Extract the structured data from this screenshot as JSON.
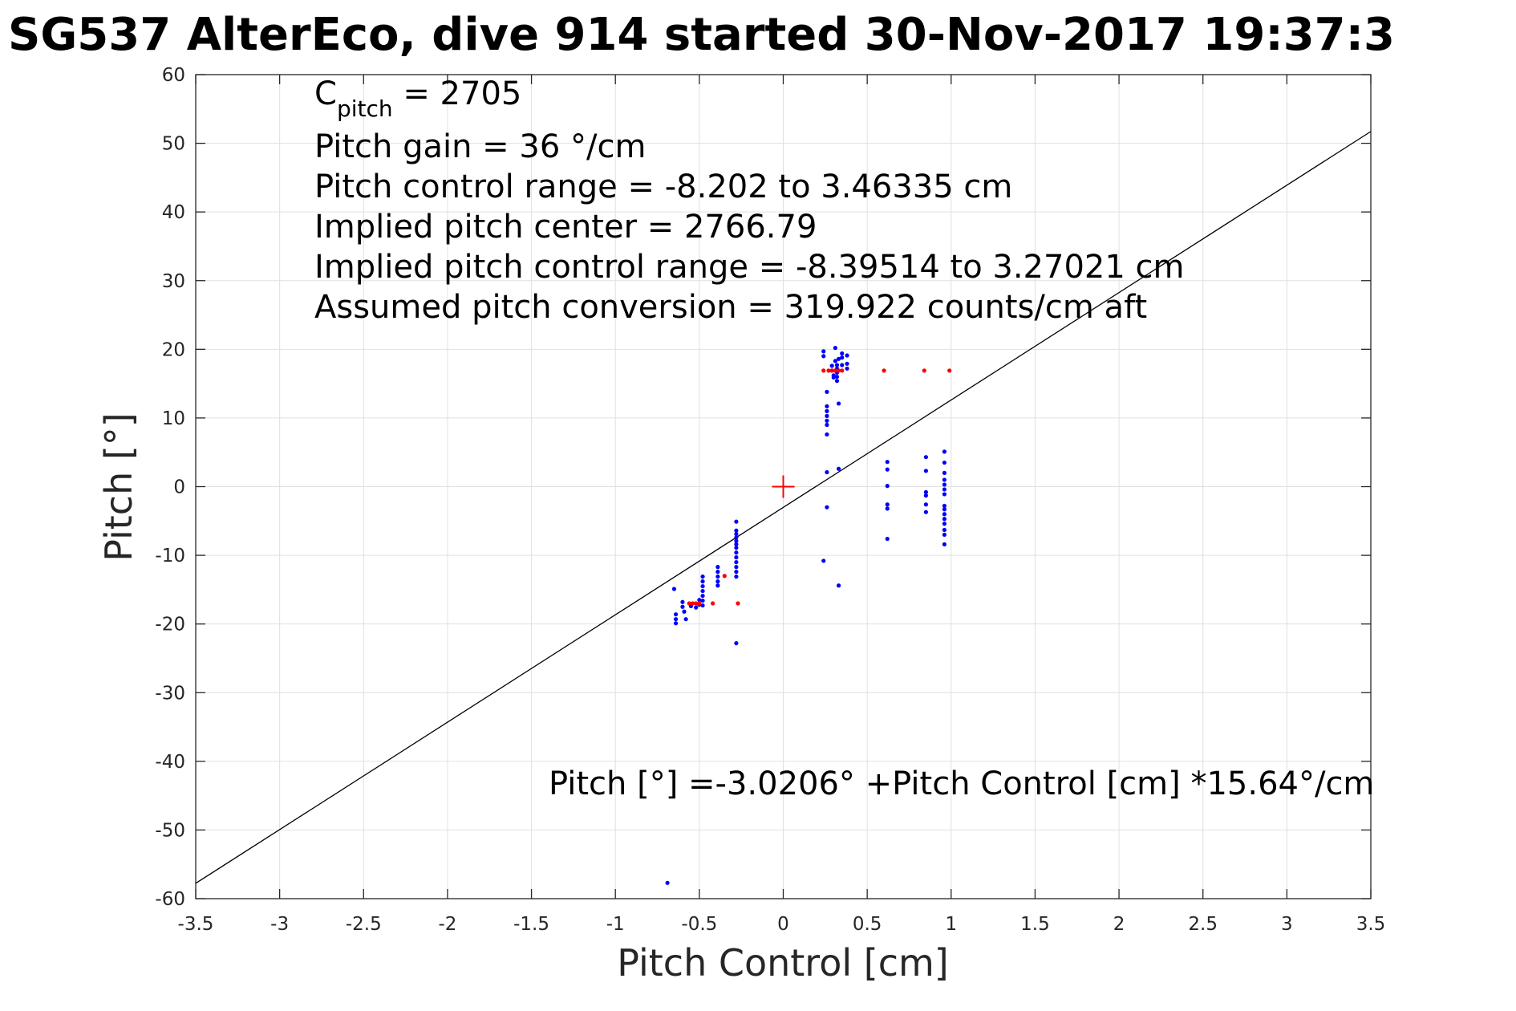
{
  "chart_data": {
    "type": "scatter",
    "title": "SG537 AlterEco, dive 914 started 30-Nov-2017 19:37:3",
    "xlabel": "Pitch Control [cm]",
    "ylabel": "Pitch [°]",
    "xlim": [
      -3.5,
      3.5
    ],
    "ylim": [
      -60,
      60
    ],
    "xticks": [
      -3.5,
      -3,
      -2.5,
      -2,
      -1.5,
      -1,
      -0.5,
      0,
      0.5,
      1,
      1.5,
      2,
      2.5,
      3,
      3.5
    ],
    "xtick_labels": [
      "-3.5",
      "-3",
      "-2.5",
      "-2",
      "-1.5",
      "-1",
      "-0.5",
      "0",
      "0.5",
      "1",
      "1.5",
      "2",
      "2.5",
      "3",
      "3.5"
    ],
    "yticks": [
      -60,
      -50,
      -40,
      -30,
      -20,
      -10,
      0,
      10,
      20,
      30,
      40,
      50,
      60
    ],
    "ytick_labels": [
      "-60",
      "-50",
      "-40",
      "-30",
      "-20",
      "-10",
      "0",
      "10",
      "20",
      "30",
      "40",
      "50",
      "60"
    ],
    "grid": true,
    "colors": {
      "blue": "#0000ff",
      "red": "#ff0000",
      "line": "#000000",
      "grid": "#e0e0e0"
    },
    "annotations": {
      "c_pitch_main": "C",
      "c_pitch_sub": "pitch",
      "c_pitch_value": " = 2705",
      "pitch_gain": "Pitch gain = 36 °/cm",
      "pitch_control_range": "Pitch control range = -8.202 to 3.46335 cm",
      "implied_center": "Implied pitch center = 2766.79",
      "implied_range": "Implied pitch control range = -8.39514 to 3.27021 cm",
      "assumed_conversion": "Assumed pitch conversion = 319.922 counts/cm aft",
      "fit_equation": "Pitch [°] =-3.0206° +Pitch Control [cm] *15.64°/cm"
    },
    "fit_line": {
      "intercept": -3.0206,
      "slope": 15.64
    },
    "center_marker": {
      "x": 0,
      "y": 0
    },
    "series": [
      {
        "color": "blue",
        "points": [
          [
            -0.65,
            -14.9
          ],
          [
            -0.64,
            -18.6
          ],
          [
            -0.64,
            -19.3
          ],
          [
            -0.64,
            -19.9
          ],
          [
            -0.6,
            -16.8
          ],
          [
            -0.6,
            -17.5
          ],
          [
            -0.59,
            -18.2
          ],
          [
            -0.58,
            -19.3
          ],
          [
            -0.55,
            -17.4
          ],
          [
            -0.52,
            -17.6
          ],
          [
            -0.5,
            -16.5
          ],
          [
            -0.5,
            -17.2
          ],
          [
            -0.48,
            -13.1
          ],
          [
            -0.48,
            -13.8
          ],
          [
            -0.48,
            -14.5
          ],
          [
            -0.48,
            -15.2
          ],
          [
            -0.48,
            -15.9
          ],
          [
            -0.48,
            -16.6
          ],
          [
            -0.48,
            -17.3
          ],
          [
            -0.39,
            -11.7
          ],
          [
            -0.39,
            -12.4
          ],
          [
            -0.39,
            -13.1
          ],
          [
            -0.39,
            -13.8
          ],
          [
            -0.39,
            -14.4
          ],
          [
            -0.28,
            -5.1
          ],
          [
            -0.28,
            -6.4
          ],
          [
            -0.28,
            -6.9
          ],
          [
            -0.28,
            -7.4
          ],
          [
            -0.28,
            -7.9
          ],
          [
            -0.28,
            -8.4
          ],
          [
            -0.28,
            -8.9
          ],
          [
            -0.28,
            -9.6
          ],
          [
            -0.28,
            -10.3
          ],
          [
            -0.28,
            -11.0
          ],
          [
            -0.28,
            -11.7
          ],
          [
            -0.28,
            -12.4
          ],
          [
            -0.28,
            -13.1
          ],
          [
            -0.28,
            -22.8
          ],
          [
            -0.69,
            -57.7
          ],
          [
            0.24,
            19.7
          ],
          [
            0.24,
            19.0
          ],
          [
            0.24,
            -10.8
          ],
          [
            0.26,
            13.8
          ],
          [
            0.26,
            11.7
          ],
          [
            0.26,
            11.0
          ],
          [
            0.26,
            10.3
          ],
          [
            0.26,
            9.6
          ],
          [
            0.26,
            9.0
          ],
          [
            0.26,
            7.6
          ],
          [
            0.26,
            2.1
          ],
          [
            0.26,
            -3.0
          ],
          [
            0.29,
            17.6
          ],
          [
            0.29,
            16.9
          ],
          [
            0.3,
            16.2
          ],
          [
            0.3,
            15.9
          ],
          [
            0.31,
            20.2
          ],
          [
            0.31,
            18.3
          ],
          [
            0.32,
            17.7
          ],
          [
            0.32,
            17.2
          ],
          [
            0.32,
            16.6
          ],
          [
            0.32,
            16.0
          ],
          [
            0.32,
            15.4
          ],
          [
            0.33,
            18.6
          ],
          [
            0.33,
            12.1
          ],
          [
            0.33,
            2.6
          ],
          [
            0.33,
            -14.4
          ],
          [
            0.35,
            19.4
          ],
          [
            0.35,
            18.8
          ],
          [
            0.35,
            17.7
          ],
          [
            0.38,
            19.1
          ],
          [
            0.38,
            17.9
          ],
          [
            0.38,
            17.2
          ],
          [
            0.62,
            3.6
          ],
          [
            0.62,
            2.5
          ],
          [
            0.62,
            0.1
          ],
          [
            0.62,
            -2.6
          ],
          [
            0.62,
            -3.2
          ],
          [
            0.62,
            -7.6
          ],
          [
            0.85,
            4.3
          ],
          [
            0.85,
            2.3
          ],
          [
            0.85,
            -0.8
          ],
          [
            0.85,
            -1.3
          ],
          [
            0.85,
            -2.6
          ],
          [
            0.85,
            -3.7
          ],
          [
            0.96,
            5.1
          ],
          [
            0.96,
            3.5
          ],
          [
            0.96,
            2.0
          ],
          [
            0.96,
            1.0
          ],
          [
            0.96,
            0.3
          ],
          [
            0.96,
            -0.4
          ],
          [
            0.96,
            -1.1
          ],
          [
            0.96,
            -2.8
          ],
          [
            0.96,
            -3.3
          ],
          [
            0.96,
            -4.0
          ],
          [
            0.96,
            -4.7
          ],
          [
            0.96,
            -5.4
          ],
          [
            0.96,
            -6.3
          ],
          [
            0.96,
            -7.0
          ],
          [
            0.96,
            -8.4
          ]
        ]
      },
      {
        "color": "red",
        "points": [
          [
            -0.56,
            -17.0
          ],
          [
            -0.54,
            -17.0
          ],
          [
            -0.52,
            -17.0
          ],
          [
            -0.5,
            -17.0
          ],
          [
            -0.42,
            -17.0
          ],
          [
            -0.27,
            -17.0
          ],
          [
            -0.35,
            -13.0
          ],
          [
            0.24,
            16.9
          ],
          [
            0.27,
            16.9
          ],
          [
            0.29,
            16.9
          ],
          [
            0.31,
            16.9
          ],
          [
            0.33,
            16.9
          ],
          [
            0.35,
            16.9
          ],
          [
            0.6,
            16.9
          ],
          [
            0.84,
            16.9
          ],
          [
            0.99,
            16.9
          ]
        ]
      }
    ]
  }
}
